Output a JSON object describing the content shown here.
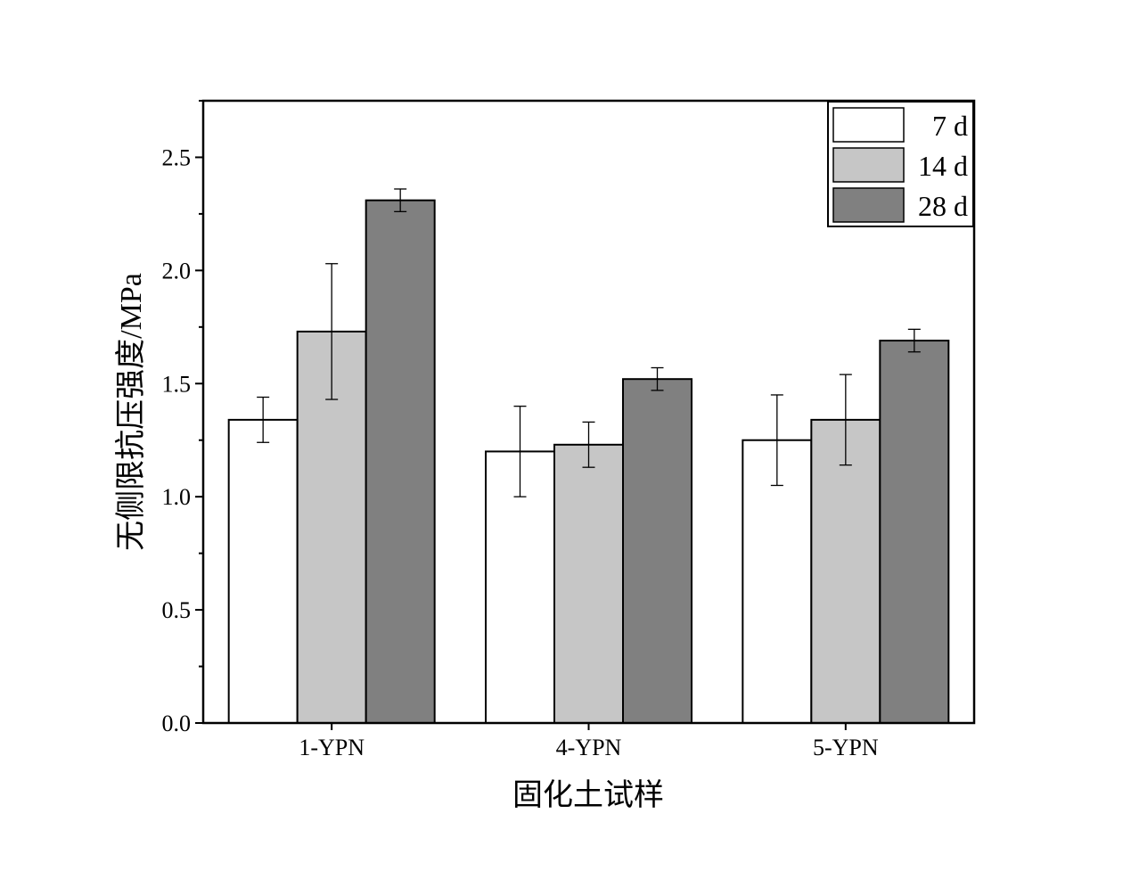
{
  "chart_data": {
    "type": "bar",
    "categories": [
      "1-YPN",
      "4-YPN",
      "5-YPN"
    ],
    "series": [
      {
        "name": "7 d",
        "values": [
          1.34,
          1.2,
          1.25
        ],
        "errors": [
          0.1,
          0.2,
          0.2
        ],
        "color": "#ffffff"
      },
      {
        "name": "14 d",
        "values": [
          1.73,
          1.23,
          1.34
        ],
        "errors": [
          0.3,
          0.1,
          0.2
        ],
        "color": "#c6c6c6"
      },
      {
        "name": "28 d",
        "values": [
          2.31,
          1.52,
          1.69
        ],
        "errors": [
          0.05,
          0.05,
          0.05
        ],
        "color": "#808080"
      }
    ],
    "xlabel": "固化土试样",
    "ylabel": "无侧限抗压强度/MPa",
    "ylim": [
      0,
      2.75
    ],
    "yticks": [
      "0.0",
      "0.5",
      "1.0",
      "1.5",
      "2.0",
      "2.5"
    ],
    "legend_position": "top-right",
    "grid": false
  }
}
